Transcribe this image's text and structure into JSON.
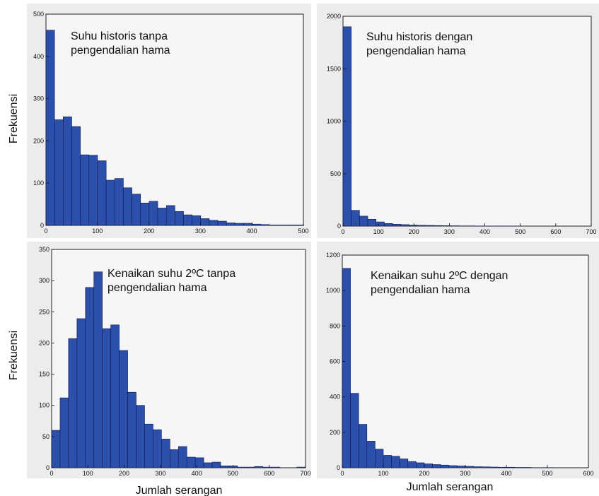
{
  "figure": {
    "ylabel": "Frekuensi",
    "xlabel": "Jumlah  serangan"
  },
  "chart_data": [
    {
      "type": "bar",
      "title_lines": [
        "Suhu historis tanpa",
        "pengendalian hama"
      ],
      "xlim": [
        0,
        500
      ],
      "ylim": [
        0,
        500
      ],
      "xticks": [
        0,
        100,
        200,
        300,
        400,
        500
      ],
      "yticks": [
        0,
        100,
        200,
        300,
        400,
        500
      ],
      "bin_width": 16.7,
      "values": [
        462,
        250,
        257,
        234,
        167,
        166,
        153,
        107,
        111,
        89,
        74,
        53,
        57,
        41,
        47,
        33,
        25,
        23,
        16,
        12,
        10,
        6,
        5,
        5,
        3,
        2,
        1,
        1,
        1,
        1
      ]
    },
    {
      "type": "bar",
      "title_lines": [
        "Suhu historis dengan",
        "pengendalian hama"
      ],
      "xlim": [
        0,
        700
      ],
      "ylim": [
        0,
        2000
      ],
      "xticks": [
        0,
        100,
        200,
        300,
        400,
        500,
        600,
        700
      ],
      "yticks": [
        0,
        500,
        1000,
        1500,
        2000
      ],
      "bin_width": 23.3,
      "values": [
        1900,
        150,
        95,
        65,
        40,
        25,
        18,
        14,
        10,
        8,
        7,
        5,
        4,
        3,
        2,
        2,
        1,
        1,
        1,
        1,
        1,
        0,
        0,
        0,
        0,
        0,
        0,
        0,
        0,
        0
      ]
    },
    {
      "type": "bar",
      "title_lines": [
        "Kenaikan suhu 2ºC tanpa",
        "pengendalian hama"
      ],
      "xlim": [
        0,
        700
      ],
      "ylim": [
        0,
        350
      ],
      "xticks": [
        0,
        100,
        200,
        300,
        400,
        500,
        600,
        700
      ],
      "yticks": [
        0,
        50,
        100,
        150,
        200,
        250,
        300,
        350
      ],
      "bin_width": 23.3,
      "values": [
        60,
        112,
        207,
        239,
        289,
        314,
        223,
        229,
        188,
        121,
        100,
        70,
        61,
        46,
        29,
        34,
        17,
        16,
        8,
        9,
        3,
        3,
        1,
        1,
        2,
        1,
        1,
        0,
        0,
        1
      ]
    },
    {
      "type": "bar",
      "title_lines": [
        "Kenaikan suhu 2ºC dengan",
        "pengendalian hama"
      ],
      "xlim": [
        0,
        600
      ],
      "ylim": [
        0,
        1200
      ],
      "xticks": [
        0,
        100,
        200,
        300,
        400,
        500,
        600
      ],
      "yticks": [
        0,
        200,
        400,
        600,
        800,
        1000,
        1200
      ],
      "bin_width": 20,
      "values": [
        1125,
        420,
        245,
        150,
        105,
        70,
        65,
        50,
        35,
        28,
        22,
        18,
        15,
        12,
        10,
        8,
        6,
        5,
        4,
        3,
        3,
        2,
        2,
        1,
        1,
        1,
        0,
        0,
        0,
        0
      ]
    }
  ]
}
